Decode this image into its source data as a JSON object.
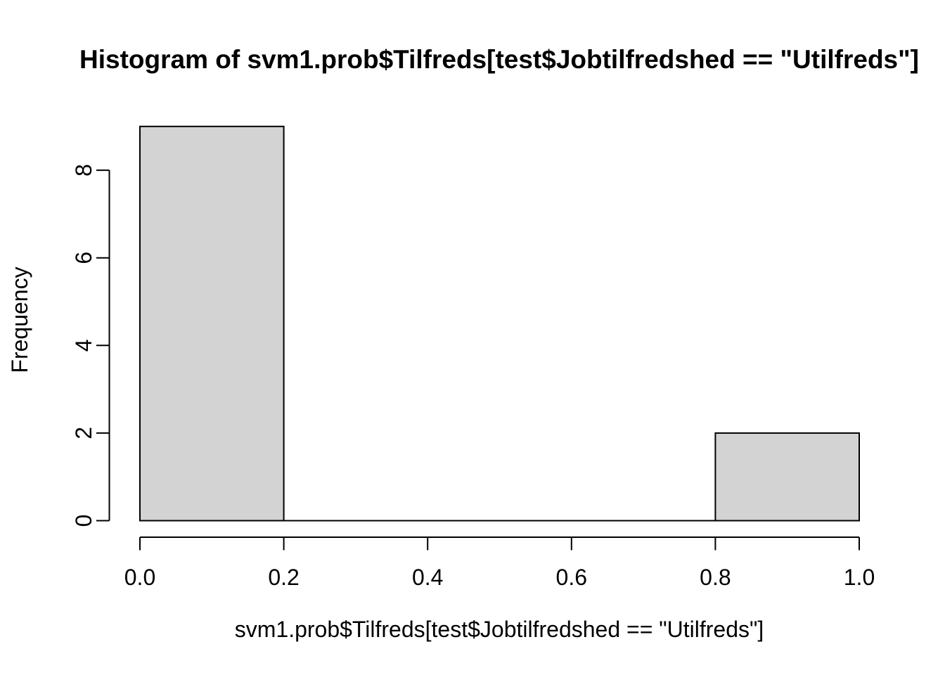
{
  "chart_data": {
    "type": "bar",
    "subtype": "histogram",
    "title": "Histogram of svm1.prob$Tilfreds[test$Jobtilfredshed == \"Utilfreds\"]",
    "xlabel": "svm1.prob$Tilfreds[test$Jobtilfredshed == \"Utilfreds\"]",
    "ylabel": "Frequency",
    "bins": [
      {
        "from": 0.0,
        "to": 0.2,
        "count": 9
      },
      {
        "from": 0.2,
        "to": 0.4,
        "count": 0
      },
      {
        "from": 0.4,
        "to": 0.6,
        "count": 0
      },
      {
        "from": 0.6,
        "to": 0.8,
        "count": 0
      },
      {
        "from": 0.8,
        "to": 1.0,
        "count": 2
      }
    ],
    "x_ticks": [
      "0.0",
      "0.2",
      "0.4",
      "0.6",
      "0.8",
      "1.0"
    ],
    "x_tick_values": [
      0.0,
      0.2,
      0.4,
      0.6,
      0.8,
      1.0
    ],
    "y_ticks": [
      "0",
      "2",
      "4",
      "6",
      "8"
    ],
    "y_tick_values": [
      0,
      2,
      4,
      6,
      8
    ],
    "xlim": [
      0.0,
      1.0
    ],
    "ylim": [
      0,
      9
    ],
    "grid": false,
    "legend": null,
    "bar_fill": "#d3d3d3",
    "bar_border": "#000000",
    "axis_color": "#000000",
    "background": "#ffffff"
  }
}
